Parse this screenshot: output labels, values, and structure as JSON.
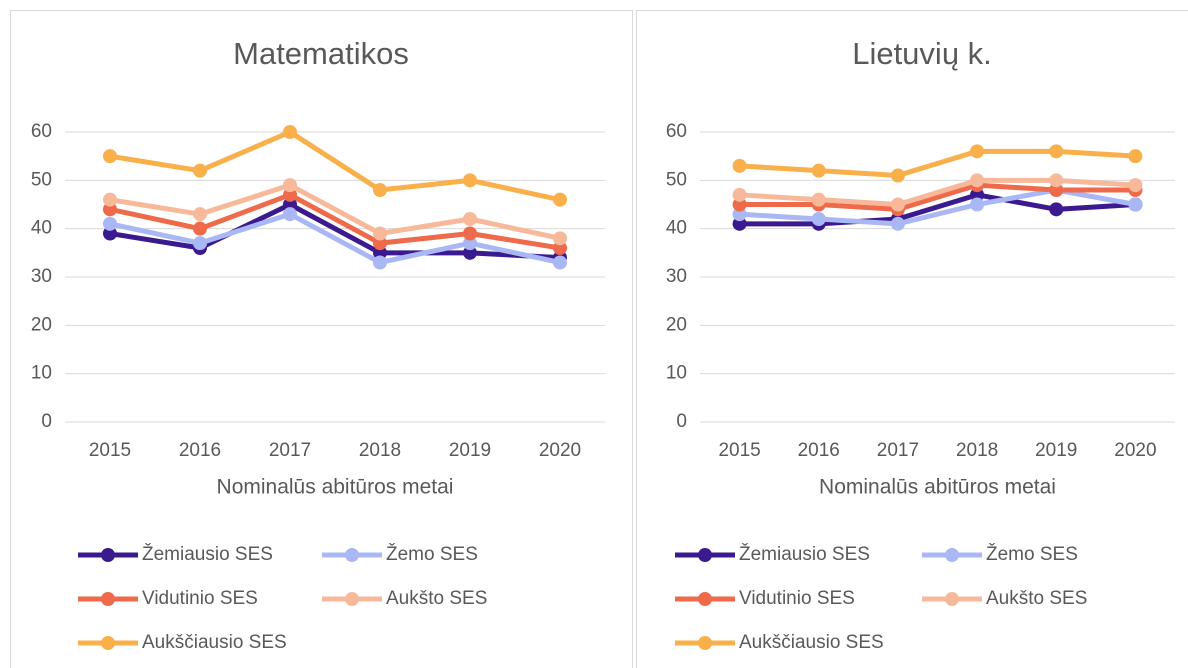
{
  "chart_data": [
    {
      "type": "line",
      "title": "Matematikos",
      "x_label": "Nominalūs abitūros metai",
      "categories": [
        "2015",
        "2016",
        "2017",
        "2018",
        "2019",
        "2020"
      ],
      "ylim": [
        0,
        60
      ],
      "yticks": [
        0,
        10,
        20,
        30,
        40,
        50,
        60
      ],
      "grid": true,
      "series": [
        {
          "name": "Žemiausio SES",
          "color": "#3b1a8f",
          "values": [
            39,
            36,
            45,
            35,
            35,
            34
          ]
        },
        {
          "name": "Žemo SES",
          "color": "#a9b8f5",
          "values": [
            41,
            37,
            43,
            33,
            37,
            33
          ]
        },
        {
          "name": "Vidutinio SES",
          "color": "#ee6a4b",
          "values": [
            44,
            40,
            47,
            37,
            39,
            36
          ]
        },
        {
          "name": "Aukšto SES",
          "color": "#f8b99a",
          "values": [
            46,
            43,
            49,
            39,
            42,
            38
          ]
        },
        {
          "name": "Aukščiausio SES",
          "color": "#f9b04a",
          "values": [
            55,
            52,
            60,
            48,
            50,
            46
          ]
        }
      ]
    },
    {
      "type": "line",
      "title": "Lietuvių k.",
      "x_label": "Nominalūs abitūros metai",
      "categories": [
        "2015",
        "2016",
        "2017",
        "2018",
        "2019",
        "2020"
      ],
      "ylim": [
        0,
        60
      ],
      "yticks": [
        0,
        10,
        20,
        30,
        40,
        50,
        60
      ],
      "grid": true,
      "series": [
        {
          "name": "Žemiausio SES",
          "color": "#3b1a8f",
          "values": [
            41,
            41,
            42,
            47,
            44,
            45
          ]
        },
        {
          "name": "Žemo SES",
          "color": "#a9b8f5",
          "values": [
            43,
            42,
            41,
            45,
            48,
            45
          ]
        },
        {
          "name": "Vidutinio SES",
          "color": "#ee6a4b",
          "values": [
            45,
            45,
            44,
            49,
            48,
            48
          ]
        },
        {
          "name": "Aukšto SES",
          "color": "#f8b99a",
          "values": [
            47,
            46,
            45,
            50,
            50,
            49
          ]
        },
        {
          "name": "Aukščiausio SES",
          "color": "#f9b04a",
          "values": [
            53,
            52,
            51,
            56,
            56,
            55
          ]
        }
      ]
    }
  ]
}
